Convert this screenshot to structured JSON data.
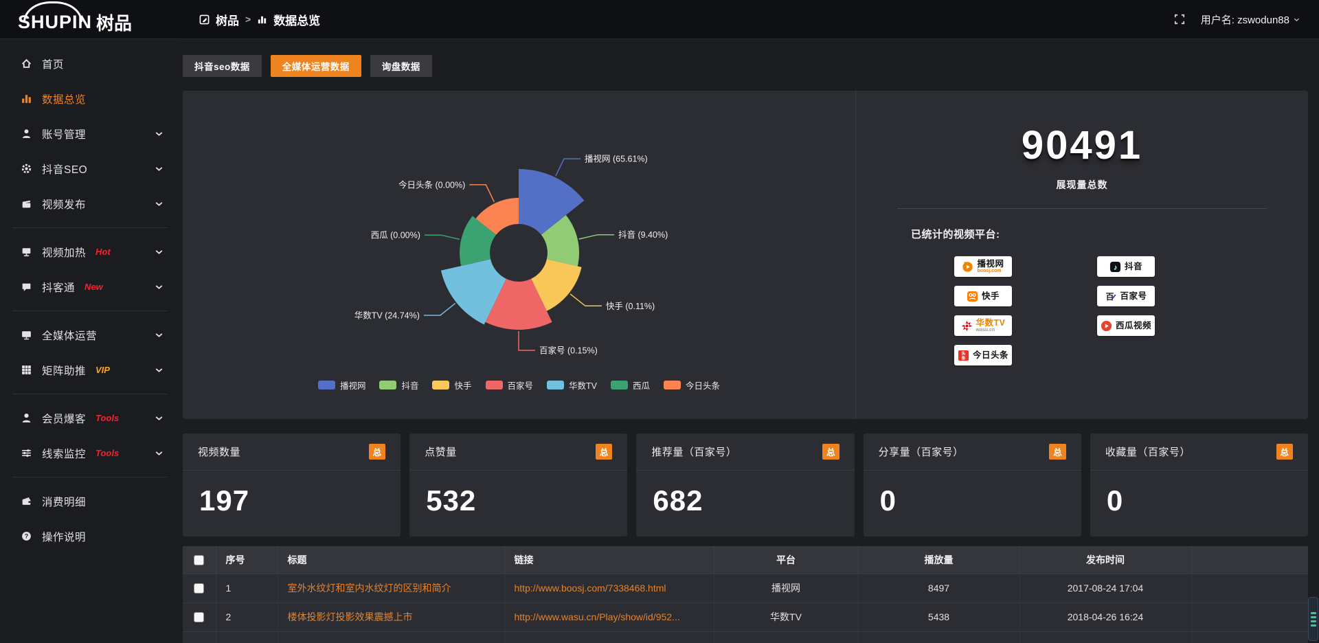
{
  "topbar": {
    "logo_en": "SHUPIN",
    "logo_cn": "树品",
    "breadcrumb": [
      "树品",
      "数据总览"
    ],
    "breadcrumb_sep": ">",
    "username": "用户名: zswodun88"
  },
  "sidebar": {
    "items": [
      {
        "label": "首页",
        "icon": "home"
      },
      {
        "label": "数据总览",
        "icon": "chart",
        "active": true
      },
      {
        "label": "账号管理",
        "icon": "user",
        "chevron": true
      },
      {
        "label": "抖音SEO",
        "icon": "gear",
        "chevron": true
      },
      {
        "label": "视频发布",
        "icon": "publish",
        "chevron": true
      },
      {
        "divider": true
      },
      {
        "label": "视频加热",
        "icon": "heat",
        "badge": "Hot",
        "badge_color": "#f5222d",
        "chevron": true
      },
      {
        "label": "抖客通",
        "icon": "chat",
        "badge": "New",
        "badge_color": "#f5222d",
        "chevron": true
      },
      {
        "divider": true
      },
      {
        "label": "全媒体运营",
        "icon": "monitor",
        "chevron": true
      },
      {
        "label": "矩阵助推",
        "icon": "grid",
        "badge": "VIP",
        "badge_color": "#f9a825",
        "chevron": true
      },
      {
        "divider": true
      },
      {
        "label": "会员爆客",
        "icon": "person",
        "badge": "Tools",
        "badge_color": "#f5222d",
        "chevron": true
      },
      {
        "label": "线索监控",
        "icon": "sliders",
        "badge": "Tools",
        "badge_color": "#f5222d",
        "chevron": true
      },
      {
        "divider": true
      },
      {
        "label": "消费明细",
        "icon": "wallet"
      },
      {
        "label": "操作说明",
        "icon": "help"
      }
    ]
  },
  "tabs": [
    {
      "label": "抖音seo数据",
      "active": false
    },
    {
      "label": "全媒体运营数据",
      "active": true
    },
    {
      "label": "询盘数据",
      "active": false
    }
  ],
  "chart_data": {
    "type": "pie",
    "variant": "nightingale-rose",
    "legend_position": "bottom",
    "inner_radius": 42,
    "items": [
      {
        "name": "播视网",
        "pct": 65.61,
        "label": "播视网 (65.61%)",
        "color": "#5470c6",
        "display_radius": 122
      },
      {
        "name": "抖音",
        "pct": 9.4,
        "label": "抖音 (9.40%)",
        "color": "#91cc75",
        "display_radius": 88
      },
      {
        "name": "快手",
        "pct": 0.11,
        "label": "快手 (0.11%)",
        "color": "#fac858",
        "display_radius": 94
      },
      {
        "name": "百家号",
        "pct": 0.15,
        "label": "百家号 (0.15%)",
        "color": "#ee6666",
        "display_radius": 112
      },
      {
        "name": "华数TV",
        "pct": 24.74,
        "label": "华数TV (24.74%)",
        "color": "#73c0de",
        "display_radius": 116
      },
      {
        "name": "西瓜",
        "pct": 0.0,
        "label": "西瓜 (0.00%)",
        "color": "#3ba272",
        "display_radius": 86
      },
      {
        "name": "今日头条",
        "pct": 0.0,
        "label": "今日头条 (0.00%)",
        "color": "#fc8452",
        "display_radius": 80
      }
    ]
  },
  "summary": {
    "total": "90491",
    "total_label": "展现量总数",
    "platforms_label": "已统计的视频平台:",
    "platforms": [
      {
        "name": "播视网",
        "sub": "boosj.com",
        "sub_color": "#f08300",
        "col": "left",
        "logo": "boosj"
      },
      {
        "name": "快手",
        "col": "left",
        "logo": "kuaishou"
      },
      {
        "name": "华数TV",
        "sub": "wasu.cn",
        "sub_color": "#999999",
        "name_color": "#f08300",
        "col": "left",
        "logo": "wasu"
      },
      {
        "name": "今日头条",
        "col": "left",
        "logo": "toutiao"
      },
      {
        "name": "抖音",
        "col": "right",
        "logo": "douyin"
      },
      {
        "name": "百家号",
        "col": "right",
        "logo": "baijia"
      },
      {
        "name": "西瓜视频",
        "col": "right",
        "logo": "xigua"
      }
    ]
  },
  "stat_cards": [
    {
      "title": "视频数量",
      "badge": "总",
      "value": "197"
    },
    {
      "title": "点赞量",
      "badge": "总",
      "value": "532"
    },
    {
      "title": "推荐量（百家号）",
      "badge": "总",
      "value": "682"
    },
    {
      "title": "分享量（百家号）",
      "badge": "总",
      "value": "0"
    },
    {
      "title": "收藏量（百家号）",
      "badge": "总",
      "value": "0"
    }
  ],
  "table": {
    "headers": [
      "序号",
      "标题",
      "链接",
      "平台",
      "播放量",
      "发布时间"
    ],
    "rows": [
      {
        "no": "1",
        "title": "室外水纹灯和室内水纹灯的区别和简介",
        "link": "http://www.boosj.com/7338468.html",
        "platform": "播视网",
        "plays": "8497",
        "time": "2017-08-24 17:04"
      },
      {
        "no": "2",
        "title": "楼体投影灯投影效果震撼上市",
        "link": "http://www.wasu.cn/Play/show/id/952...",
        "platform": "华数TV",
        "plays": "5438",
        "time": "2018-04-26 16:24"
      },
      {
        "no": "",
        "title": "",
        "link": "",
        "platform": "",
        "plays": "",
        "time": ""
      }
    ]
  }
}
